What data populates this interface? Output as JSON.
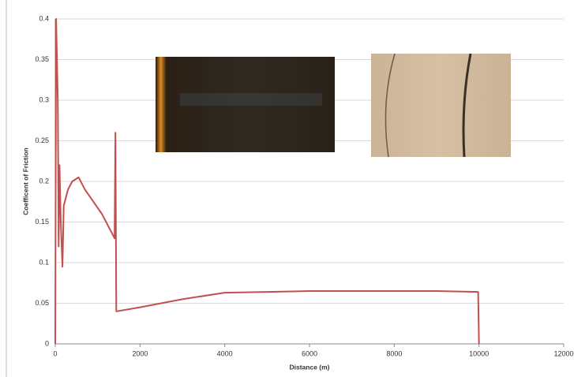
{
  "chart_data": {
    "type": "line",
    "x_label": "Distance (m)",
    "y_label": "Coefficent of Friction",
    "x": [
      0,
      20,
      60,
      80,
      100,
      130,
      170,
      200,
      300,
      400,
      550,
      700,
      900,
      1100,
      1300,
      1400,
      1420,
      1440,
      2000,
      3000,
      4000,
      5000,
      6000,
      7000,
      8000,
      9000,
      9980,
      10000
    ],
    "values": [
      0,
      0.4,
      0.3,
      0.12,
      0.22,
      0.15,
      0.095,
      0.17,
      0.19,
      0.2,
      0.205,
      0.19,
      0.175,
      0.16,
      0.14,
      0.13,
      0.26,
      0.04,
      0.045,
      0.055,
      0.063,
      0.064,
      0.065,
      0.065,
      0.065,
      0.065,
      0.064,
      0
    ],
    "color": "#c0504d",
    "xlim": [
      0,
      12000
    ],
    "xticks": [
      0,
      2000,
      4000,
      6000,
      8000,
      10000,
      12000
    ],
    "ylim": [
      0,
      0.4
    ],
    "yticks": [
      0,
      0.05,
      0.1,
      0.15,
      0.2,
      0.25,
      0.3,
      0.35,
      0.4
    ],
    "grid": true
  }
}
